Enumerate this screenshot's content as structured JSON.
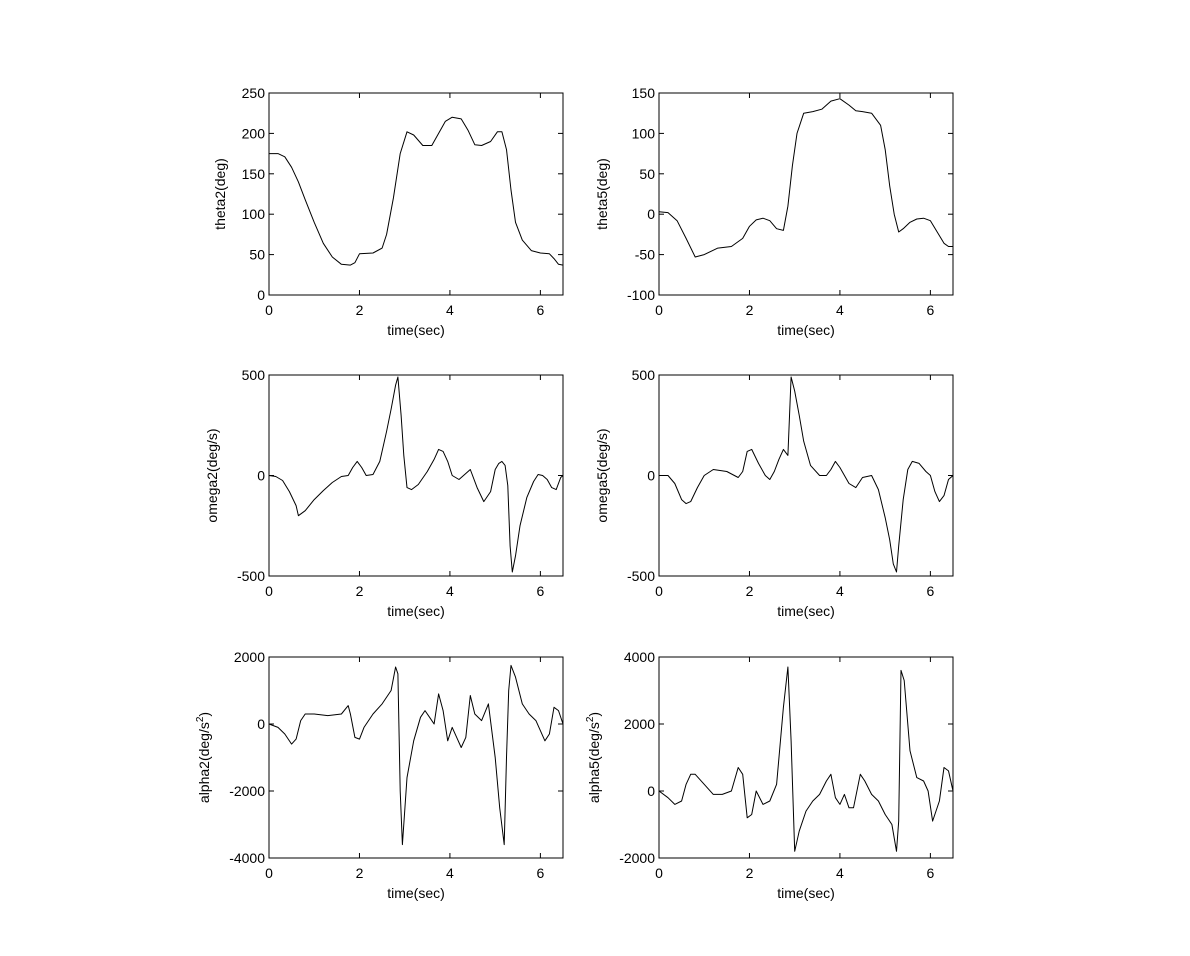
{
  "chart_data": [
    {
      "type": "line",
      "xlabel": "time(sec)",
      "ylabel": "theta2(deg)",
      "xlim": [
        0,
        6.5
      ],
      "ylim": [
        0,
        250
      ],
      "xticks": [
        0,
        2,
        4,
        6
      ],
      "xtick_labels": [
        "0",
        "2",
        "4",
        "6"
      ],
      "yticks": [
        0,
        50,
        100,
        150,
        200,
        250
      ],
      "ytick_labels": [
        "0",
        "50",
        "100",
        "150",
        "200",
        "250"
      ],
      "grid": false,
      "line_color": "#000000",
      "series": [
        {
          "x": [
            0,
            0.2,
            0.35,
            0.5,
            0.65,
            0.8,
            1.0,
            1.2,
            1.4,
            1.6,
            1.8,
            1.9,
            2.0,
            2.3,
            2.5,
            2.6,
            2.75,
            2.9,
            3.05,
            3.2,
            3.4,
            3.6,
            3.75,
            3.9,
            4.05,
            4.25,
            4.4,
            4.55,
            4.7,
            4.9,
            5.05,
            5.15,
            5.25,
            5.35,
            5.45,
            5.6,
            5.8,
            6.0,
            6.2,
            6.3,
            6.4,
            6.5
          ],
          "y": [
            175,
            175,
            171,
            158,
            140,
            118,
            90,
            64,
            47,
            38,
            37,
            40,
            51,
            52,
            58,
            75,
            120,
            175,
            202,
            198,
            185,
            185,
            200,
            215,
            220,
            218,
            204,
            186,
            185,
            190,
            202,
            202,
            180,
            130,
            90,
            68,
            55,
            52,
            51,
            45,
            38,
            37
          ]
        }
      ]
    },
    {
      "type": "line",
      "xlabel": "time(sec)",
      "ylabel": "theta5(deg)",
      "xlim": [
        0,
        6.5
      ],
      "ylim": [
        -100,
        150
      ],
      "xticks": [
        0,
        2,
        4,
        6
      ],
      "xtick_labels": [
        "0",
        "2",
        "4",
        "6"
      ],
      "yticks": [
        -100,
        -50,
        0,
        50,
        100,
        150
      ],
      "ytick_labels": [
        "-100",
        "-50",
        "0",
        "50",
        "100",
        "150"
      ],
      "grid": false,
      "line_color": "#000000",
      "series": [
        {
          "x": [
            0,
            0.2,
            0.4,
            0.6,
            0.8,
            1.0,
            1.3,
            1.6,
            1.85,
            2.0,
            2.15,
            2.3,
            2.45,
            2.6,
            2.75,
            2.85,
            2.95,
            3.05,
            3.2,
            3.4,
            3.6,
            3.8,
            4.0,
            4.2,
            4.35,
            4.5,
            4.7,
            4.9,
            5.0,
            5.1,
            5.2,
            5.3,
            5.4,
            5.55,
            5.7,
            5.85,
            6.0,
            6.15,
            6.3,
            6.4,
            6.5
          ],
          "y": [
            3,
            2,
            -8,
            -30,
            -53,
            -50,
            -42,
            -40,
            -30,
            -15,
            -7,
            -5,
            -8,
            -18,
            -20,
            10,
            60,
            100,
            125,
            127,
            130,
            140,
            143,
            135,
            128,
            127,
            125,
            110,
            80,
            35,
            0,
            -22,
            -18,
            -10,
            -6,
            -5,
            -8,
            -22,
            -36,
            -40,
            -40
          ]
        }
      ]
    },
    {
      "type": "line",
      "xlabel": "time(sec)",
      "ylabel": "omega2(deg/s)",
      "xlim": [
        0,
        6.5
      ],
      "ylim": [
        -500,
        500
      ],
      "xticks": [
        0,
        2,
        4,
        6
      ],
      "xtick_labels": [
        "0",
        "2",
        "4",
        "6"
      ],
      "yticks": [
        -500,
        0,
        500
      ],
      "ytick_labels": [
        "-500",
        "0",
        "500"
      ],
      "grid": false,
      "line_color": "#000000",
      "series": [
        {
          "x": [
            0,
            0.15,
            0.3,
            0.45,
            0.6,
            0.65,
            0.8,
            1.0,
            1.2,
            1.4,
            1.6,
            1.75,
            1.85,
            1.95,
            2.05,
            2.15,
            2.3,
            2.45,
            2.6,
            2.7,
            2.8,
            2.85,
            2.92,
            2.98,
            3.05,
            3.15,
            3.3,
            3.5,
            3.65,
            3.75,
            3.85,
            3.95,
            4.05,
            4.2,
            4.35,
            4.45,
            4.6,
            4.75,
            4.9,
            5.0,
            5.08,
            5.15,
            5.22,
            5.28,
            5.33,
            5.38,
            5.45,
            5.55,
            5.7,
            5.85,
            5.95,
            6.05,
            6.15,
            6.25,
            6.35,
            6.45,
            6.5
          ],
          "y": [
            0,
            -5,
            -25,
            -80,
            -150,
            -200,
            -175,
            -120,
            -75,
            -35,
            -5,
            0,
            40,
            70,
            40,
            0,
            5,
            70,
            220,
            330,
            450,
            490,
            300,
            100,
            -60,
            -70,
            -45,
            20,
            80,
            130,
            120,
            70,
            0,
            -20,
            10,
            30,
            -60,
            -130,
            -80,
            30,
            60,
            70,
            50,
            -50,
            -350,
            -480,
            -400,
            -250,
            -110,
            -30,
            5,
            0,
            -20,
            -60,
            -70,
            -10,
            0
          ]
        }
      ]
    },
    {
      "type": "line",
      "xlabel": "time(sec)",
      "ylabel": "omega5(deg/s)",
      "xlim": [
        0,
        6.5
      ],
      "ylim": [
        -500,
        500
      ],
      "xticks": [
        0,
        2,
        4,
        6
      ],
      "xtick_labels": [
        "0",
        "2",
        "4",
        "6"
      ],
      "yticks": [
        -500,
        0,
        500
      ],
      "ytick_labels": [
        "-500",
        "0",
        "500"
      ],
      "grid": false,
      "line_color": "#000000",
      "series": [
        {
          "x": [
            0,
            0.2,
            0.35,
            0.5,
            0.6,
            0.7,
            0.85,
            1.0,
            1.2,
            1.5,
            1.75,
            1.85,
            1.95,
            2.05,
            2.2,
            2.35,
            2.45,
            2.55,
            2.65,
            2.75,
            2.85,
            2.92,
            3.0,
            3.1,
            3.2,
            3.35,
            3.55,
            3.7,
            3.8,
            3.9,
            4.0,
            4.2,
            4.35,
            4.5,
            4.7,
            4.85,
            5.0,
            5.1,
            5.18,
            5.25,
            5.3,
            5.4,
            5.5,
            5.6,
            5.75,
            5.9,
            6.0,
            6.1,
            6.2,
            6.3,
            6.4,
            6.5
          ],
          "y": [
            0,
            0,
            -40,
            -120,
            -140,
            -130,
            -60,
            0,
            30,
            20,
            -10,
            20,
            120,
            130,
            60,
            0,
            -20,
            20,
            80,
            130,
            100,
            490,
            420,
            300,
            170,
            50,
            0,
            0,
            30,
            70,
            40,
            -40,
            -60,
            -10,
            0,
            -70,
            -210,
            -320,
            -440,
            -480,
            -350,
            -120,
            30,
            70,
            60,
            20,
            0,
            -80,
            -130,
            -100,
            -20,
            0
          ]
        }
      ]
    },
    {
      "type": "line",
      "xlabel": "time(sec)",
      "ylabel": "alpha2(deg/s²)",
      "xlim": [
        0,
        6.5
      ],
      "ylim": [
        -4000,
        2000
      ],
      "xticks": [
        0,
        2,
        4,
        6
      ],
      "xtick_labels": [
        "0",
        "2",
        "4",
        "6"
      ],
      "yticks": [
        -4000,
        -2000,
        0,
        2000
      ],
      "ytick_labels": [
        "-4000",
        "-2000",
        "0",
        "2000"
      ],
      "grid": false,
      "line_color": "#000000",
      "series": [
        {
          "x": [
            0,
            0.2,
            0.35,
            0.5,
            0.6,
            0.7,
            0.8,
            1.0,
            1.3,
            1.6,
            1.75,
            1.8,
            1.9,
            2.0,
            2.1,
            2.3,
            2.5,
            2.7,
            2.8,
            2.85,
            2.9,
            2.95,
            3.05,
            3.2,
            3.35,
            3.45,
            3.55,
            3.65,
            3.75,
            3.85,
            3.95,
            4.05,
            4.15,
            4.25,
            4.35,
            4.45,
            4.55,
            4.7,
            4.85,
            5.0,
            5.1,
            5.2,
            5.25,
            5.3,
            5.35,
            5.45,
            5.6,
            5.75,
            5.9,
            6.0,
            6.1,
            6.2,
            6.3,
            6.4,
            6.5
          ],
          "y": [
            0,
            -100,
            -300,
            -600,
            -450,
            100,
            300,
            300,
            250,
            300,
            550,
            300,
            -400,
            -450,
            -100,
            300,
            600,
            1000,
            1700,
            1500,
            -2000,
            -3600,
            -1600,
            -500,
            200,
            400,
            200,
            0,
            900,
            400,
            -500,
            -100,
            -400,
            -700,
            -400,
            850,
            300,
            100,
            600,
            -1000,
            -2500,
            -3600,
            -1000,
            1000,
            1750,
            1400,
            600,
            300,
            100,
            -200,
            -500,
            -300,
            500,
            400,
            0
          ]
        }
      ]
    },
    {
      "type": "line",
      "xlabel": "time(sec)",
      "ylabel": "alpha5(deg/s²)",
      "xlim": [
        0,
        6.5
      ],
      "ylim": [
        -2000,
        4000
      ],
      "xticks": [
        0,
        2,
        4,
        6
      ],
      "xtick_labels": [
        "0",
        "2",
        "4",
        "6"
      ],
      "yticks": [
        -2000,
        0,
        2000,
        4000
      ],
      "ytick_labels": [
        "-2000",
        "0",
        "2000",
        "4000"
      ],
      "grid": false,
      "line_color": "#000000",
      "series": [
        {
          "x": [
            0,
            0.2,
            0.35,
            0.5,
            0.6,
            0.7,
            0.8,
            1.0,
            1.2,
            1.4,
            1.6,
            1.75,
            1.85,
            1.95,
            2.05,
            2.15,
            2.3,
            2.45,
            2.6,
            2.75,
            2.85,
            2.92,
            3.0,
            3.1,
            3.25,
            3.4,
            3.55,
            3.7,
            3.8,
            3.9,
            4.0,
            4.1,
            4.2,
            4.3,
            4.45,
            4.55,
            4.7,
            4.85,
            5.0,
            5.15,
            5.25,
            5.3,
            5.35,
            5.42,
            5.55,
            5.7,
            5.85,
            5.95,
            6.05,
            6.2,
            6.3,
            6.4,
            6.5
          ],
          "y": [
            0,
            -200,
            -400,
            -300,
            200,
            500,
            500,
            200,
            -100,
            -100,
            0,
            700,
            500,
            -800,
            -700,
            0,
            -400,
            -300,
            200,
            2500,
            3700,
            1500,
            -1800,
            -1200,
            -600,
            -300,
            -100,
            300,
            500,
            -200,
            -400,
            -100,
            -500,
            -500,
            500,
            300,
            -100,
            -300,
            -700,
            -1000,
            -1800,
            -900,
            3600,
            3300,
            1200,
            400,
            300,
            0,
            -900,
            -300,
            700,
            600,
            0
          ]
        }
      ]
    }
  ]
}
